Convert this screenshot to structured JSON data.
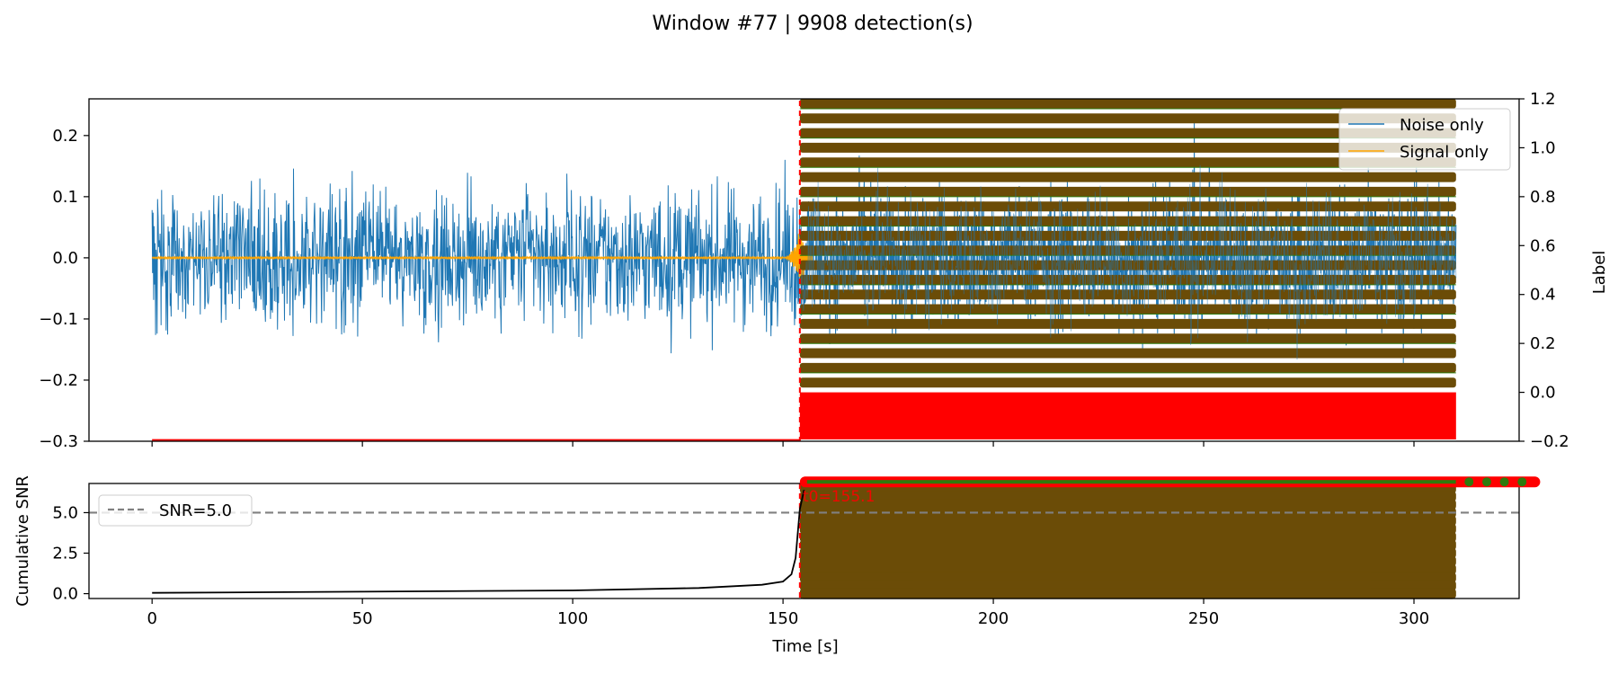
{
  "chart_data": [
    {
      "type": "line",
      "panel": "top",
      "title": "Window #77 | 9908 detection(s)",
      "xlabel": "",
      "ylabel": "",
      "y2label": "Label",
      "xlim": [
        -15,
        325
      ],
      "ylim": [
        -0.3,
        0.26
      ],
      "y2lim": [
        -0.2,
        1.2
      ],
      "yticks": [
        0.2,
        0.1,
        0.0,
        -0.1,
        -0.2,
        -0.3
      ],
      "ytick_labels": [
        "0.2",
        "0.1",
        "0.0",
        "−0.1",
        "−0.2",
        "−0.3"
      ],
      "y2ticks": [
        1.2,
        1.0,
        0.8,
        0.6,
        0.4,
        0.2,
        0.0,
        -0.2
      ],
      "y2tick_labels": [
        "1.2",
        "1.0",
        "0.8",
        "0.6",
        "0.4",
        "0.2",
        "0.0",
        "−0.2"
      ],
      "series": [
        {
          "name": "Noise only",
          "color": "#1f77b4",
          "x_range": [
            0,
            310
          ],
          "amplitude_typical": 0.13,
          "amplitude_peak": 0.23
        },
        {
          "name": "Signal only",
          "color": "#ffa500",
          "x_range": [
            0,
            157
          ],
          "onset": 150,
          "peak_time": 153.5,
          "peak_amplitude": 0.04
        },
        {
          "name": "detection labels",
          "color": "#ff0000",
          "x_range": [
            154,
            310
          ],
          "level": 0.0
        },
        {
          "name": "detection markers",
          "color": "#6b4c07",
          "x_range": [
            154,
            310
          ],
          "levels": [
            1.18,
            1.12,
            1.06,
            1.0,
            0.94,
            0.88,
            0.82,
            0.76,
            0.7,
            0.64,
            0.58,
            0.52,
            0.46,
            0.4,
            0.34,
            0.28,
            0.22,
            0.16,
            0.1,
            0.04
          ]
        }
      ],
      "detection_onset": 154,
      "legend": {
        "position": "top-right",
        "entries": [
          "Noise only",
          "Signal only"
        ]
      }
    },
    {
      "type": "line",
      "panel": "bottom",
      "xlabel": "Time [s]",
      "ylabel": "Cumulative SNR",
      "xlim": [
        -15,
        325
      ],
      "ylim": [
        -0.3,
        6.8
      ],
      "xticks": [
        0,
        50,
        100,
        150,
        200,
        250,
        300
      ],
      "xtick_labels": [
        "0",
        "50",
        "100",
        "150",
        "200",
        "250",
        "300"
      ],
      "yticks": [
        0.0,
        2.5,
        5.0
      ],
      "ytick_labels": [
        "0.0",
        "2.5",
        "5.0"
      ],
      "threshold": {
        "label": "SNR=5.0",
        "value": 5.0,
        "color": "#808080"
      },
      "series": [
        {
          "name": "Cumulative SNR",
          "color": "#000000",
          "x": [
            0,
            50,
            100,
            130,
            145,
            150,
            152,
            153,
            154,
            155
          ],
          "y": [
            0.05,
            0.12,
            0.2,
            0.35,
            0.55,
            0.75,
            1.2,
            2.2,
            5.2,
            6.4
          ]
        },
        {
          "name": "detection markers",
          "color": "#6b4c07",
          "x_range": [
            154,
            310
          ],
          "levels": [
            6.5,
            6.0,
            5.5,
            5.0,
            4.5,
            4.0,
            3.5,
            3.0,
            2.5,
            2.0,
            1.5,
            1.0,
            0.5,
            0.0
          ]
        },
        {
          "name": "detections",
          "color": "#ff0000",
          "x_range": [
            154,
            330
          ],
          "level": 6.9
        }
      ],
      "annotation": {
        "text": "t0=155.1",
        "x": 154,
        "y": 5.6,
        "color": "#ff0000"
      },
      "legend": {
        "position": "top-left",
        "entries": [
          "SNR=5.0"
        ]
      }
    }
  ]
}
